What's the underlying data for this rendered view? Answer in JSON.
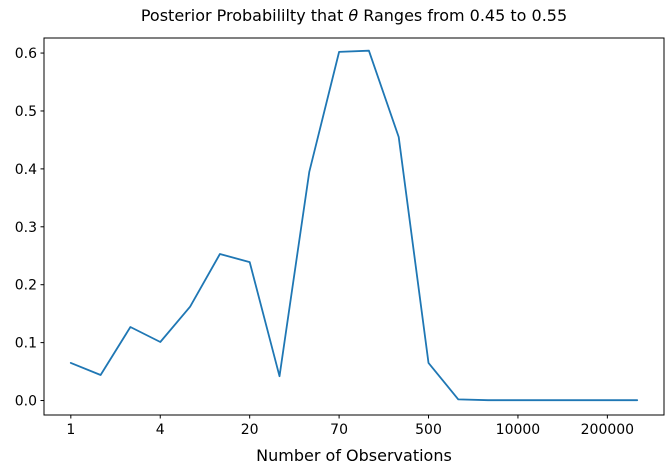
{
  "figure": {
    "title_prefix": "Posterior Probabililty that ",
    "title_theta": "θ",
    "title_suffix": " Ranges from 0.45 to 0.55",
    "xlabel": "Number of Observations",
    "line_color": "#1f77b4",
    "background_color": "#ffffff",
    "spine_color": "#000000"
  },
  "chart_data": {
    "type": "line",
    "title": "Posterior Probabililty that θ Ranges from 0.45 to 0.55",
    "xlabel": "Number of Observations",
    "ylabel": "",
    "grid": false,
    "legend": false,
    "x_tick_labels": [
      "1",
      "4",
      "20",
      "70",
      "500",
      "10000",
      "200000"
    ],
    "x_tick_indices": [
      0,
      3,
      6,
      9,
      12,
      15,
      18
    ],
    "yticks": [
      0.0,
      0.1,
      0.2,
      0.3,
      0.4,
      0.5,
      0.6
    ],
    "ylim": [
      -0.025,
      0.626
    ],
    "xlim_index": [
      -0.9,
      19.9
    ],
    "series": [
      {
        "name": "posterior probability",
        "x_index": [
          0,
          1,
          2,
          3,
          4,
          5,
          6,
          7,
          8,
          9,
          10,
          11,
          12,
          13,
          14,
          15,
          16,
          17,
          18,
          19
        ],
        "values": [
          0.065,
          0.044,
          0.127,
          0.101,
          0.162,
          0.253,
          0.239,
          0.042,
          0.395,
          0.602,
          0.604,
          0.455,
          0.065,
          0.002,
          0.0005,
          0.0005,
          0.0005,
          0.0005,
          0.0005,
          0.0005
        ]
      }
    ]
  }
}
